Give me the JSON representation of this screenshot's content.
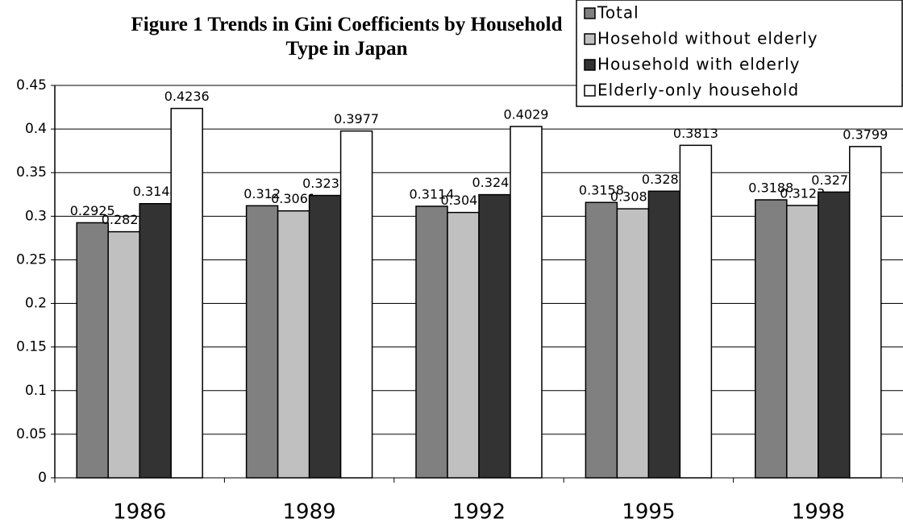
{
  "chart_data": {
    "type": "bar",
    "title": "Figure 1 Trends in Gini Coefficients by Household Type in Japan",
    "categories": [
      "1986",
      "1989",
      "1992",
      "1995",
      "1998"
    ],
    "series": [
      {
        "name": "Total",
        "color": "#808080",
        "values": [
          0.2925,
          0.312,
          0.3114,
          0.3158,
          0.3188
        ]
      },
      {
        "name": "Hosehold without elderly",
        "color": "#c0c0c0",
        "values": [
          0.2822,
          0.3061,
          0.3043,
          0.3085,
          0.3123
        ]
      },
      {
        "name": "Household with elderly",
        "color": "#333333",
        "values": [
          0.3144,
          0.3238,
          0.3247,
          0.3287,
          0.3277
        ]
      },
      {
        "name": "Elderly-only household",
        "color": "#ffffff",
        "values": [
          0.4236,
          0.3977,
          0.4029,
          0.3813,
          0.3799
        ]
      }
    ],
    "ylim": [
      0,
      0.45
    ],
    "yticks": [
      0,
      0.05,
      0.1,
      0.15,
      0.2,
      0.25,
      0.3,
      0.35,
      0.4,
      0.45
    ],
    "grid": true,
    "legend": "top-right"
  }
}
